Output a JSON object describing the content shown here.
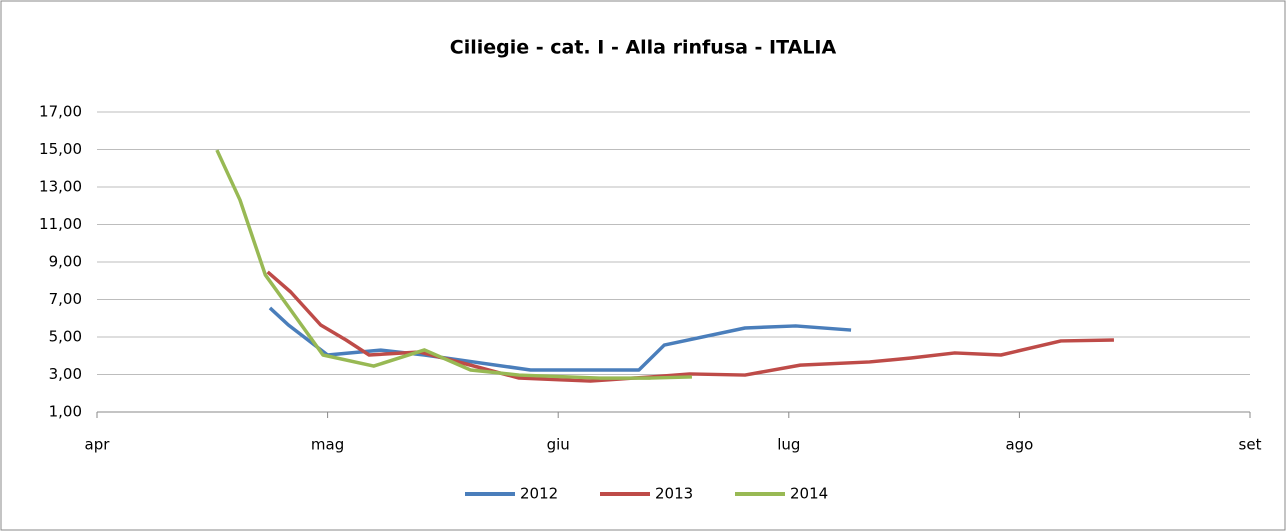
{
  "chart_data": {
    "type": "line",
    "title": "Ciliegie - cat. I - Alla rinfusa - ITALIA",
    "xlim": [
      0,
      5
    ],
    "xticks": [
      {
        "value": 0,
        "label": "apr"
      },
      {
        "value": 1,
        "label": "mag"
      },
      {
        "value": 2,
        "label": "giu"
      },
      {
        "value": 3,
        "label": "lug"
      },
      {
        "value": 4,
        "label": "ago"
      },
      {
        "value": 5,
        "label": "set"
      }
    ],
    "ylim": [
      1,
      17
    ],
    "yticks": [
      {
        "value": 1,
        "label": "1,00"
      },
      {
        "value": 3,
        "label": "3,00"
      },
      {
        "value": 5,
        "label": "5,00"
      },
      {
        "value": 7,
        "label": "7,00"
      },
      {
        "value": 9,
        "label": "9,00"
      },
      {
        "value": 11,
        "label": "11,00"
      },
      {
        "value": 13,
        "label": "13,00"
      },
      {
        "value": 15,
        "label": "15,00"
      },
      {
        "value": 17,
        "label": "17,00"
      }
    ],
    "grid": true,
    "legend": "bottom",
    "series": [
      {
        "name": "2012",
        "color": "#4a7ebb",
        "x": [
          0.75,
          0.83,
          1.0,
          1.23,
          1.42,
          1.88,
          2.35,
          2.46,
          2.81,
          3.03,
          3.27
        ],
        "values": [
          6.55,
          5.64,
          4.04,
          4.3,
          4.04,
          3.24,
          3.24,
          4.57,
          5.48,
          5.59,
          5.37
        ]
      },
      {
        "name": "2013",
        "color": "#be4b48",
        "x": [
          0.74,
          0.84,
          0.97,
          1.08,
          1.18,
          1.4,
          1.62,
          1.83,
          2.14,
          2.4,
          2.57,
          2.81,
          3.05,
          3.35,
          3.53,
          3.72,
          3.92,
          4.18,
          4.41
        ],
        "values": [
          8.47,
          7.4,
          5.64,
          4.84,
          4.04,
          4.2,
          3.5,
          2.81,
          2.65,
          2.87,
          3.03,
          2.97,
          3.5,
          3.67,
          3.88,
          4.15,
          4.04,
          4.79,
          4.84
        ]
      },
      {
        "name": "2014",
        "color": "#98b954",
        "x": [
          0.52,
          0.62,
          0.73,
          0.84,
          0.98,
          1.2,
          1.42,
          1.62,
          1.83,
          2.18,
          2.4,
          2.58
        ],
        "values": [
          14.97,
          12.31,
          8.31,
          6.44,
          4.04,
          3.45,
          4.31,
          3.24,
          2.97,
          2.81,
          2.81,
          2.87
        ]
      }
    ]
  }
}
